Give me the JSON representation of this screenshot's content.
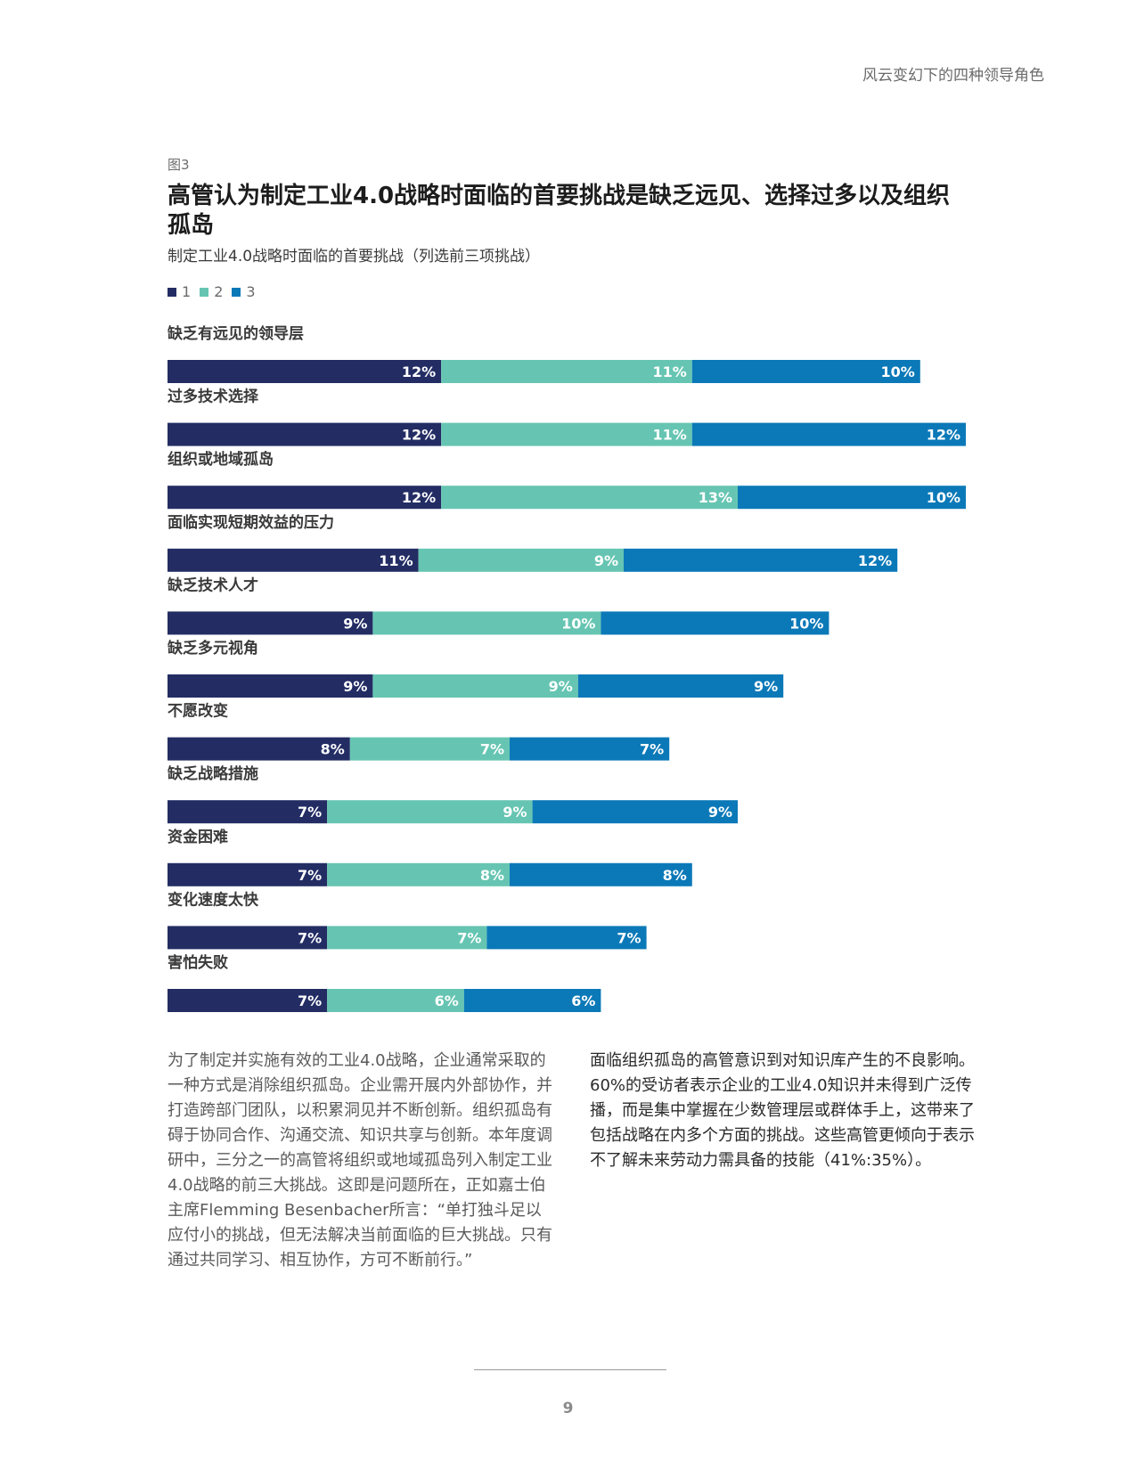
{
  "header": {
    "running_title": "风云变幻下的四种领导角色"
  },
  "figure": {
    "label": "图3",
    "title": "高管认为制定工业4.0战略时面临的首要挑战是缺乏远见、选择过多以及组织孤岛",
    "subtitle": "制定工业4.0战略时面临的首要挑战（列选前三项挑战）"
  },
  "colors": {
    "series1": "#232d64",
    "series2": "#66c5b2",
    "series3": "#0b79b8"
  },
  "chart_data": {
    "type": "bar",
    "orientation": "horizontal",
    "stacked": true,
    "value_suffix": "%",
    "legend": [
      "1",
      "2",
      "3"
    ],
    "categories": [
      "缺乏有远见的领导层",
      "过多技术选择",
      "组织或地域孤岛",
      "面临实现短期效益的压力",
      "缺乏技术人才",
      "缺乏多元视角",
      "不愿改变",
      "缺乏战略措施",
      "资金困难",
      "变化速度太快",
      "害怕失败"
    ],
    "series": [
      {
        "name": "1",
        "values": [
          12,
          12,
          12,
          11,
          9,
          9,
          8,
          7,
          7,
          7,
          7
        ]
      },
      {
        "name": "2",
        "values": [
          11,
          11,
          13,
          9,
          10,
          9,
          7,
          9,
          8,
          7,
          6
        ]
      },
      {
        "name": "3",
        "values": [
          10,
          12,
          10,
          12,
          10,
          9,
          7,
          9,
          8,
          7,
          6
        ]
      }
    ],
    "xlim": [
      0,
      35
    ]
  },
  "body": {
    "left_paragraph": "为了制定并实施有效的工业4.0战略，企业通常采取的一种方式是消除组织孤岛。企业需开展内外部协作，并打造跨部门团队，以积累洞见并不断创新。组织孤岛有碍于协同合作、沟通交流、知识共享与创新。本年度调研中，三分之一的高管将组织或地域孤岛列入制定工业4.0战略的前三大挑战。这即是问题所在，正如嘉士伯主席Flemming Besenbacher所言：“单打独斗足以应付小的挑战，但无法解决当前面临的巨大挑战。只有通过共同学习、相互协作，方可不断前行。”",
    "right_paragraph": "面临组织孤岛的高管意识到对知识库产生的不良影响。60%的受访者表示企业的工业4.0知识并未得到广泛传播，而是集中掌握在少数管理层或群体手上，这带来了包括战略在内多个方面的挑战。这些高管更倾向于表示不了解未来劳动力需具备的技能（41%:35%）。"
  },
  "footer": {
    "page_number": "9"
  }
}
